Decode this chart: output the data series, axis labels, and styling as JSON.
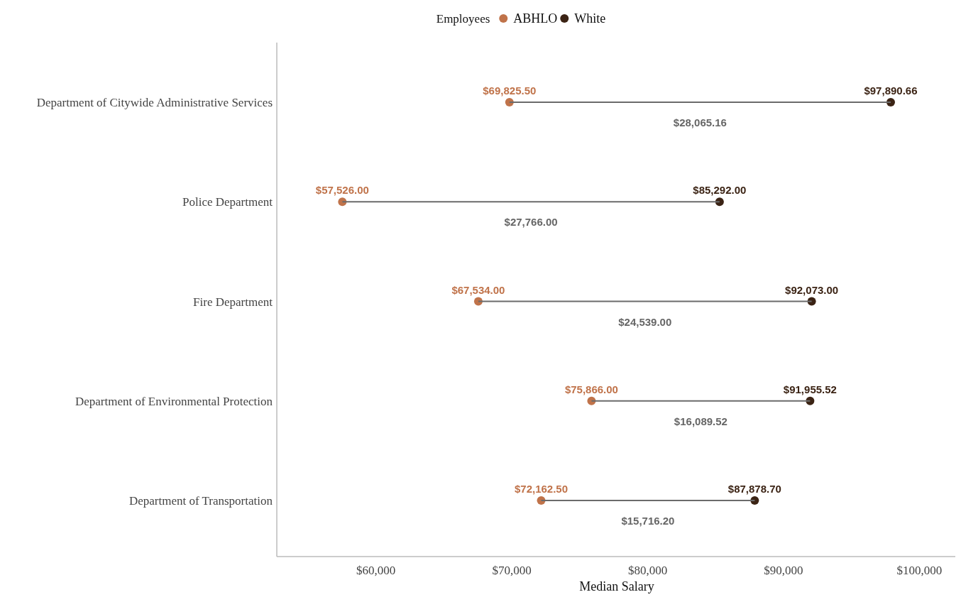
{
  "chart_data": {
    "type": "scatter",
    "orientation": "horizontal",
    "xlabel": "Median Salary",
    "legend_title": "Employees",
    "legend": "top",
    "marker": "circle",
    "grid": false,
    "categories": [
      "Department of Citywide Administrative Services",
      "Police Department",
      "Fire Department",
      "Department of Environmental Protection",
      "Department of Transportation"
    ],
    "xlim": [
      52700,
      102750
    ],
    "xticks": [
      {
        "value": 60000,
        "label": "$60,000"
      },
      {
        "value": 70000,
        "label": "$70,000"
      },
      {
        "value": 80000,
        "label": "$80,000"
      },
      {
        "value": 90000,
        "label": "$90,000"
      },
      {
        "value": 100000,
        "label": "$100,000"
      }
    ],
    "series": [
      {
        "type": "bar",
        "color": "#6b6b6b",
        "base": [
          69825.5,
          57526,
          67534,
          75866,
          72162.5
        ],
        "values": [
          28065.16,
          27766,
          24539,
          16089.52,
          15716.2
        ]
      },
      {
        "name": "ABHLO",
        "color": "#c0734a",
        "values": [
          69825.5,
          57526,
          67534,
          75866,
          72162.5
        ],
        "value_labels": [
          "$69,825.50",
          "$57,526.00",
          "$67,534.00",
          "$75,866.00",
          "$72,162.50"
        ]
      },
      {
        "name": "White",
        "color": "#3b2314",
        "values": [
          97890.66,
          85292,
          92073,
          91955.52,
          87878.7
        ],
        "value_labels": [
          "$97,890.66",
          "$85,292.00",
          "$92,073.00",
          "$91,955.52",
          "$87,878.70"
        ]
      }
    ],
    "annotations": [
      {
        "text": "$28,065.16",
        "x": 83858.08,
        "y": "Department of Citywide Administrative Services"
      },
      {
        "text": "$27,766.00",
        "x": 71409,
        "y": "Police Department"
      },
      {
        "text": "$24,539.00",
        "x": 79803.5,
        "y": "Fire Department"
      },
      {
        "text": "$16,089.52",
        "x": 83910.76,
        "y": "Department of Environmental Protection"
      },
      {
        "text": "$15,716.20",
        "x": 80020.6,
        "y": "Department of Transportation"
      }
    ]
  }
}
